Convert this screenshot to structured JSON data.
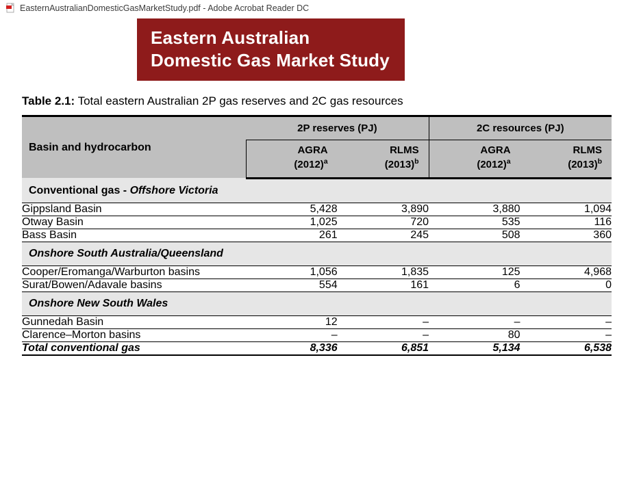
{
  "window": {
    "title": "EasternAustralianDomesticGasMarketStudy.pdf - Adobe Acrobat Reader DC"
  },
  "banner": {
    "line1": "Eastern Australian",
    "line2": "Domestic Gas Market Study",
    "bg_color": "#8e1b1b",
    "text_color": "#ffffff"
  },
  "caption": {
    "label": "Table 2.1:",
    "text": " Total eastern Australian 2P gas reserves and 2C gas resources"
  },
  "table": {
    "header": {
      "basin": "Basin and hydrocarbon",
      "group_2p": "2P reserves (PJ)",
      "group_2c": "2C resources (PJ)",
      "agra": "AGRA (2012)",
      "agra_sup": "a",
      "rlms": "RLMS (2013)",
      "rlms_sup": "b",
      "header_bg": "#bfbfbf"
    },
    "sections": [
      {
        "prefix": "Conventional gas - ",
        "italic": "Offshore Victoria",
        "rows": [
          {
            "label": "Gippsland Basin",
            "v": [
              "5,428",
              "3,890",
              "3,880",
              "1,094"
            ]
          },
          {
            "label": "Otway Basin",
            "v": [
              "1,025",
              "720",
              "535",
              "116"
            ]
          },
          {
            "label": "Bass Basin",
            "v": [
              "261",
              "245",
              "508",
              "360"
            ]
          }
        ]
      },
      {
        "prefix": "",
        "italic": "Onshore South Australia/Queensland",
        "rows": [
          {
            "label": "Cooper/Eromanga/Warburton basins",
            "v": [
              "1,056",
              "1,835",
              "125",
              "4,968"
            ]
          },
          {
            "label": "Surat/Bowen/Adavale basins",
            "v": [
              "554",
              "161",
              "6",
              "0"
            ]
          }
        ]
      },
      {
        "prefix": "",
        "italic": "Onshore New South Wales",
        "rows": [
          {
            "label": "Gunnedah Basin",
            "v": [
              "12",
              "–",
              "–",
              "–"
            ]
          },
          {
            "label": "Clarence–Morton basins",
            "v": [
              "–",
              "–",
              "80",
              "–"
            ]
          }
        ]
      }
    ],
    "total": {
      "label": "Total conventional gas",
      "v": [
        "8,336",
        "6,851",
        "5,134",
        "6,538"
      ]
    },
    "section_bg": "#e6e6e6"
  }
}
